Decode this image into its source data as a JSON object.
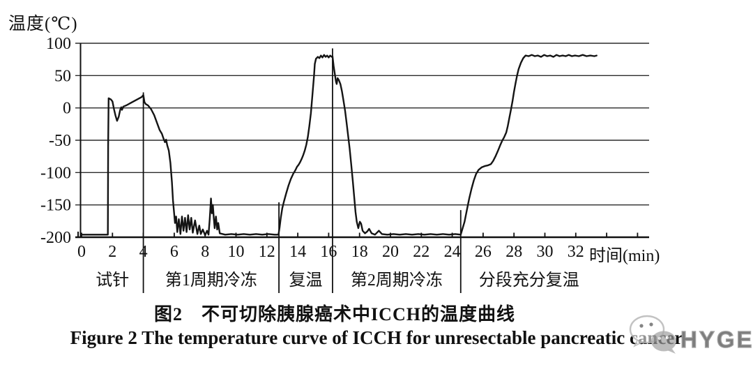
{
  "figure": {
    "caption_cn": "图2　不可切除胰腺癌术中ICCH的温度曲线",
    "caption_en": "Figure 2   The temperature curve of ICCH for unresectable pancreatic cancer"
  },
  "watermark": {
    "text": "HYGEA",
    "icon": "wechat-icon",
    "color": "#aaaaaa"
  },
  "chart_data": {
    "type": "line",
    "title": "图2 不可切除胰腺癌术中ICCH的温度曲线",
    "ylabel": "温度(℃)",
    "xlabel": "时间(min)",
    "ylim": [
      -200,
      100
    ],
    "xlim": [
      0,
      36.5
    ],
    "y_ticks": [
      100,
      50,
      0,
      -50,
      -100,
      -150,
      -200
    ],
    "x_ticks": [
      0,
      2,
      4,
      6,
      8,
      10,
      12,
      14,
      16,
      18,
      20,
      22,
      24,
      26,
      28,
      30,
      32
    ],
    "x_minor_ticks": [
      34,
      36
    ],
    "grid": "horizontal",
    "line_color": "#141414",
    "phases": [
      {
        "label": "试针",
        "start": 0,
        "end": 4
      },
      {
        "label": "第1周期冷冻",
        "start": 4,
        "end": 12.78
      },
      {
        "label": "复温",
        "start": 12.78,
        "end": 16.25
      },
      {
        "label": "第2周期冷冻",
        "start": 16.25,
        "end": 24.55
      },
      {
        "label": "分段充分复温",
        "start": 24.55,
        "end": 33.4
      }
    ],
    "dividers": [
      {
        "x": 4,
        "top": 24
      },
      {
        "x": 12.78,
        "top": -146
      },
      {
        "x": 16.25,
        "top": 92
      },
      {
        "x": 24.55,
        "top": -158
      }
    ],
    "series": [
      {
        "name": "温度",
        "points": [
          [
            0,
            -196
          ],
          [
            1.7,
            -196
          ],
          [
            1.72,
            -60
          ],
          [
            1.75,
            15
          ],
          [
            1.9,
            13
          ],
          [
            2.0,
            10
          ],
          [
            2.1,
            -2
          ],
          [
            2.2,
            -12
          ],
          [
            2.3,
            -20
          ],
          [
            2.4,
            -14
          ],
          [
            2.5,
            -3
          ],
          [
            2.57,
            1
          ],
          [
            2.62,
            -3
          ],
          [
            2.7,
            2
          ],
          [
            2.9,
            4
          ],
          [
            3.2,
            8
          ],
          [
            3.6,
            13
          ],
          [
            3.9,
            17
          ],
          [
            4.0,
            20
          ],
          [
            4.07,
            9
          ],
          [
            4.15,
            6
          ],
          [
            4.3,
            4
          ],
          [
            4.5,
            -2
          ],
          [
            4.7,
            -11
          ],
          [
            4.9,
            -24
          ],
          [
            5.05,
            -34
          ],
          [
            5.2,
            -40
          ],
          [
            5.3,
            -47
          ],
          [
            5.4,
            -53
          ],
          [
            5.47,
            -49
          ],
          [
            5.55,
            -58
          ],
          [
            5.65,
            -66
          ],
          [
            5.75,
            -85
          ],
          [
            5.85,
            -115
          ],
          [
            5.92,
            -143
          ],
          [
            5.98,
            -160
          ],
          [
            6.05,
            -178
          ],
          [
            6.12,
            -168
          ],
          [
            6.2,
            -192
          ],
          [
            6.3,
            -172
          ],
          [
            6.4,
            -195
          ],
          [
            6.5,
            -168
          ],
          [
            6.6,
            -190
          ],
          [
            6.7,
            -170
          ],
          [
            6.8,
            -192
          ],
          [
            6.9,
            -166
          ],
          [
            7.0,
            -188
          ],
          [
            7.1,
            -170
          ],
          [
            7.2,
            -193
          ],
          [
            7.35,
            -174
          ],
          [
            7.5,
            -195
          ],
          [
            7.62,
            -182
          ],
          [
            7.72,
            -195
          ],
          [
            7.85,
            -188
          ],
          [
            8.0,
            -197
          ],
          [
            8.12,
            -190
          ],
          [
            8.22,
            -196
          ],
          [
            8.3,
            -172
          ],
          [
            8.38,
            -140
          ],
          [
            8.44,
            -163
          ],
          [
            8.5,
            -150
          ],
          [
            8.56,
            -170
          ],
          [
            8.62,
            -186
          ],
          [
            8.7,
            -168
          ],
          [
            8.78,
            -188
          ],
          [
            8.85,
            -178
          ],
          [
            8.95,
            -194
          ],
          [
            9.3,
            -196
          ],
          [
            9.7,
            -195
          ],
          [
            10.1,
            -196
          ],
          [
            10.5,
            -195
          ],
          [
            10.9,
            -196
          ],
          [
            11.3,
            -195
          ],
          [
            11.7,
            -196
          ],
          [
            12.1,
            -195
          ],
          [
            12.5,
            -196
          ],
          [
            12.75,
            -196
          ],
          [
            12.82,
            -185
          ],
          [
            12.9,
            -170
          ],
          [
            13.0,
            -155
          ],
          [
            13.1,
            -145
          ],
          [
            13.25,
            -132
          ],
          [
            13.4,
            -120
          ],
          [
            13.55,
            -110
          ],
          [
            13.7,
            -102
          ],
          [
            13.85,
            -96
          ],
          [
            13.95,
            -91
          ],
          [
            14.05,
            -88
          ],
          [
            14.15,
            -84
          ],
          [
            14.25,
            -79
          ],
          [
            14.35,
            -73
          ],
          [
            14.45,
            -66
          ],
          [
            14.55,
            -57
          ],
          [
            14.65,
            -45
          ],
          [
            14.75,
            -28
          ],
          [
            14.85,
            -8
          ],
          [
            14.95,
            20
          ],
          [
            15.05,
            50
          ],
          [
            15.1,
            68
          ],
          [
            15.18,
            76
          ],
          [
            15.3,
            79
          ],
          [
            15.4,
            77
          ],
          [
            15.5,
            81
          ],
          [
            15.6,
            78
          ],
          [
            15.7,
            82
          ],
          [
            15.8,
            79
          ],
          [
            15.9,
            81
          ],
          [
            16.0,
            78
          ],
          [
            16.1,
            81
          ],
          [
            16.2,
            79
          ],
          [
            16.25,
            80
          ],
          [
            16.32,
            65
          ],
          [
            16.4,
            52
          ],
          [
            16.47,
            41
          ],
          [
            16.52,
            37
          ],
          [
            16.58,
            46
          ],
          [
            16.66,
            43
          ],
          [
            16.76,
            37
          ],
          [
            16.86,
            26
          ],
          [
            16.96,
            11
          ],
          [
            17.06,
            -4
          ],
          [
            17.16,
            -23
          ],
          [
            17.26,
            -43
          ],
          [
            17.36,
            -63
          ],
          [
            17.46,
            -87
          ],
          [
            17.56,
            -113
          ],
          [
            17.66,
            -140
          ],
          [
            17.74,
            -161
          ],
          [
            17.82,
            -176
          ],
          [
            17.92,
            -186
          ],
          [
            18.02,
            -176
          ],
          [
            18.1,
            -179
          ],
          [
            18.2,
            -190
          ],
          [
            18.35,
            -194
          ],
          [
            18.5,
            -191
          ],
          [
            18.62,
            -187
          ],
          [
            18.78,
            -194
          ],
          [
            19.0,
            -196
          ],
          [
            19.25,
            -190
          ],
          [
            19.45,
            -195
          ],
          [
            19.8,
            -196
          ],
          [
            20.2,
            -195
          ],
          [
            20.6,
            -196
          ],
          [
            21.0,
            -195
          ],
          [
            21.4,
            -196
          ],
          [
            21.8,
            -195
          ],
          [
            22.2,
            -196
          ],
          [
            22.6,
            -195
          ],
          [
            23.0,
            -196
          ],
          [
            23.4,
            -195
          ],
          [
            23.8,
            -196
          ],
          [
            24.2,
            -195
          ],
          [
            24.55,
            -196
          ],
          [
            24.65,
            -188
          ],
          [
            24.8,
            -176
          ],
          [
            24.95,
            -158
          ],
          [
            25.1,
            -140
          ],
          [
            25.25,
            -125
          ],
          [
            25.4,
            -112
          ],
          [
            25.55,
            -102
          ],
          [
            25.7,
            -96
          ],
          [
            25.9,
            -92
          ],
          [
            26.1,
            -90
          ],
          [
            26.3,
            -89
          ],
          [
            26.5,
            -87
          ],
          [
            26.65,
            -82
          ],
          [
            26.8,
            -75
          ],
          [
            26.95,
            -67
          ],
          [
            27.1,
            -58
          ],
          [
            27.25,
            -50
          ],
          [
            27.35,
            -46
          ],
          [
            27.5,
            -38
          ],
          [
            27.6,
            -28
          ],
          [
            27.7,
            -15
          ],
          [
            27.8,
            -3
          ],
          [
            27.9,
            10
          ],
          [
            28.0,
            25
          ],
          [
            28.1,
            38
          ],
          [
            28.2,
            50
          ],
          [
            28.3,
            60
          ],
          [
            28.45,
            70
          ],
          [
            28.6,
            77
          ],
          [
            28.75,
            81
          ],
          [
            28.95,
            80
          ],
          [
            29.15,
            82
          ],
          [
            29.35,
            80
          ],
          [
            29.55,
            81
          ],
          [
            29.75,
            79
          ],
          [
            29.95,
            82
          ],
          [
            30.15,
            80
          ],
          [
            30.35,
            81
          ],
          [
            30.55,
            79
          ],
          [
            30.75,
            82
          ],
          [
            30.95,
            80
          ],
          [
            31.15,
            81
          ],
          [
            31.35,
            80
          ],
          [
            31.55,
            82
          ],
          [
            31.75,
            80
          ],
          [
            31.95,
            81
          ],
          [
            32.2,
            80
          ],
          [
            32.45,
            82
          ],
          [
            32.7,
            80
          ],
          [
            32.95,
            81
          ],
          [
            33.2,
            80
          ],
          [
            33.35,
            81
          ]
        ]
      }
    ]
  }
}
